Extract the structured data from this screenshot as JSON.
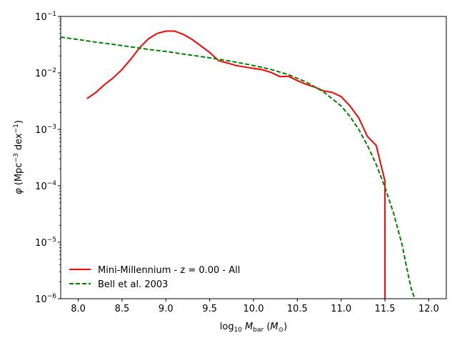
{
  "chart_data": {
    "type": "line",
    "title": "",
    "xlabel": {
      "base": "log",
      "sub": "10",
      "var": "M",
      "var_sub": "bar",
      "paren_open": " (",
      "unit": "M",
      "unit_sub": "⊙",
      "paren_close": ")"
    },
    "ylabel": {
      "sym": "φ",
      "pre": " (Mpc",
      "sup1": "−3",
      "mid": " dex",
      "sup2": "−1",
      "post": ")"
    },
    "xlim": [
      7.8,
      12.2
    ],
    "ylim": [
      1e-06,
      0.1
    ],
    "yscale": "log",
    "grid": false,
    "legend_position": "lower-left",
    "x_ticks": [
      "8.0",
      "8.5",
      "9.0",
      "9.5",
      "10.0",
      "10.5",
      "11.0",
      "11.5",
      "12.0"
    ],
    "y_ticks": [
      {
        "base": "10",
        "exp": "−6"
      },
      {
        "base": "10",
        "exp": "−5"
      },
      {
        "base": "10",
        "exp": "−4"
      },
      {
        "base": "10",
        "exp": "−3"
      },
      {
        "base": "10",
        "exp": "−2"
      },
      {
        "base": "10",
        "exp": "−1"
      }
    ],
    "series": [
      {
        "name": "Mini-Millennium - z = 0.00 - All",
        "color": "#ff0000",
        "style": "solid",
        "x": [
          8.1,
          8.2,
          8.3,
          8.4,
          8.5,
          8.6,
          8.7,
          8.8,
          8.9,
          9.0,
          9.1,
          9.2,
          9.3,
          9.4,
          9.5,
          9.6,
          9.7,
          9.8,
          9.9,
          10.0,
          10.1,
          10.2,
          10.3,
          10.4,
          10.5,
          10.6,
          10.7,
          10.8,
          10.9,
          11.0,
          11.1,
          11.2,
          11.3,
          11.4,
          11.5,
          11.5
        ],
        "y": [
          0.0035,
          0.0045,
          0.0062,
          0.0082,
          0.0115,
          0.0175,
          0.028,
          0.04,
          0.05,
          0.055,
          0.055,
          0.048,
          0.039,
          0.03,
          0.023,
          0.0165,
          0.015,
          0.0135,
          0.0127,
          0.012,
          0.0114,
          0.0102,
          0.0086,
          0.0087,
          0.0073,
          0.0063,
          0.0056,
          0.0048,
          0.0045,
          0.0038,
          0.0026,
          0.0016,
          0.00075,
          0.00052,
          0.00012,
          1e-06
        ]
      },
      {
        "name": "Bell et al. 2003",
        "color": "#008000",
        "style": "dashed",
        "x": [
          7.8,
          8.0,
          8.2,
          8.4,
          8.6,
          8.8,
          9.0,
          9.2,
          9.4,
          9.6,
          9.8,
          10.0,
          10.2,
          10.4,
          10.6,
          10.8,
          11.0,
          11.1,
          11.2,
          11.3,
          11.4,
          11.5,
          11.6,
          11.7,
          11.75,
          11.8,
          11.84
        ],
        "y": [
          0.043,
          0.039,
          0.035,
          0.032,
          0.029,
          0.026,
          0.024,
          0.0215,
          0.0195,
          0.0175,
          0.0155,
          0.0135,
          0.0115,
          0.0093,
          0.0069,
          0.0046,
          0.0026,
          0.0017,
          0.001,
          0.00052,
          0.00024,
          9.4e-05,
          3.2e-05,
          8.5e-06,
          3.4e-06,
          1.5e-06,
          1e-06
        ]
      }
    ]
  }
}
